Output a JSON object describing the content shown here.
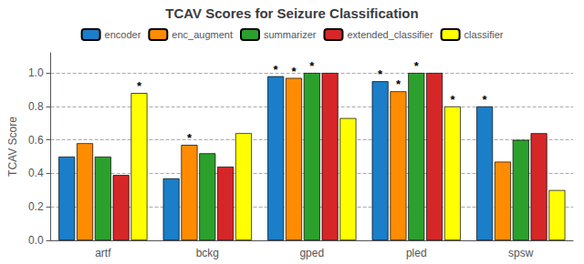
{
  "chart_data": {
    "type": "bar",
    "title": "TCAV Scores for Seizure Classification",
    "ylabel": "TCAV Score",
    "categories": [
      "artf",
      "bckg",
      "gped",
      "pled",
      "spsw"
    ],
    "series": [
      {
        "name": "encoder",
        "color": "#1a7ec8",
        "values": [
          0.5,
          0.37,
          0.98,
          0.95,
          0.8
        ],
        "annotations": [
          null,
          null,
          "*",
          "*",
          "*"
        ]
      },
      {
        "name": "enc_augment",
        "color": "#ff8c00",
        "values": [
          0.58,
          0.57,
          0.97,
          0.89,
          0.47
        ],
        "annotations": [
          null,
          "*",
          "*",
          "*",
          null
        ]
      },
      {
        "name": "summarizer",
        "color": "#2ca02c",
        "values": [
          0.5,
          0.52,
          1.0,
          1.0,
          0.6
        ],
        "annotations": [
          null,
          null,
          "*",
          "*",
          null
        ]
      },
      {
        "name": "extended_classifier",
        "color": "#d62728",
        "values": [
          0.39,
          0.44,
          1.0,
          1.0,
          0.64
        ],
        "annotations": [
          null,
          null,
          null,
          null,
          null
        ]
      },
      {
        "name": "classifier",
        "color": "#ffff00",
        "values": [
          0.88,
          0.64,
          0.73,
          0.8,
          0.3
        ],
        "annotations": [
          "*",
          null,
          null,
          "*",
          null
        ]
      }
    ],
    "ylim": [
      0.0,
      1.12
    ],
    "yticks": [
      {
        "value": 0.0,
        "label": "0.0"
      },
      0.2,
      0.4,
      0.6,
      0.8,
      {
        "value": 1.0,
        "label": "1.0"
      }
    ],
    "grid": true,
    "legend": "top"
  }
}
